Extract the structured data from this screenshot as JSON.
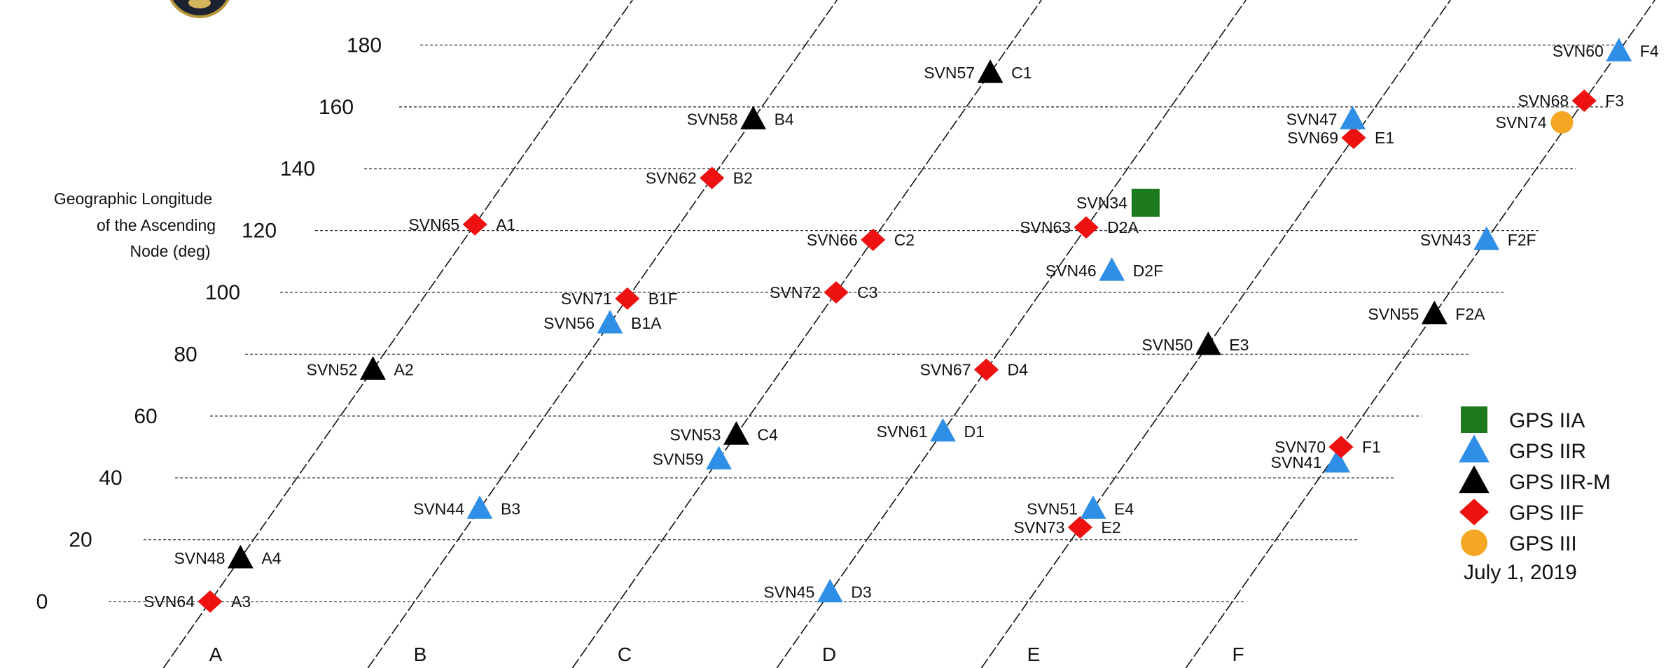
{
  "ylabel_lines": [
    "Geographic Longitude",
    "of the Ascending",
    "Node (deg)"
  ],
  "y_ticks": [
    "0",
    "20",
    "40",
    "60",
    "80",
    "100",
    "120",
    "140",
    "160",
    "180"
  ],
  "planes": [
    "A",
    "B",
    "C",
    "D",
    "E",
    "F"
  ],
  "legend": {
    "items": [
      {
        "type": "IIA",
        "label": "GPS IIA",
        "shape": "square",
        "color": "#1e7a1e"
      },
      {
        "type": "IIR",
        "label": "GPS IIR",
        "shape": "triangle",
        "color": "#2f8fe6"
      },
      {
        "type": "IIRM",
        "label": "GPS IIR-M",
        "shape": "triangle",
        "color": "#000000"
      },
      {
        "type": "IIF",
        "label": "GPS IIF",
        "shape": "diamond",
        "color": "#ee1111"
      },
      {
        "type": "III",
        "label": "GPS III",
        "shape": "circle",
        "color": "#f5a623"
      }
    ],
    "date": "July 1, 2019"
  },
  "satellites": [
    {
      "svn": "SVN64",
      "slot": "A3",
      "plane": "A",
      "lon": 0,
      "type": "IIF"
    },
    {
      "svn": "SVN48",
      "slot": "A4",
      "plane": "A",
      "lon": 14,
      "type": "IIRM"
    },
    {
      "svn": "SVN52",
      "slot": "A2",
      "plane": "A",
      "lon": 75,
      "type": "IIRM"
    },
    {
      "svn": "SVN65",
      "slot": "A1",
      "plane": "A",
      "lon": 122,
      "type": "IIF"
    },
    {
      "svn": "SVN44",
      "slot": "B3",
      "plane": "B",
      "lon": 30,
      "type": "IIR"
    },
    {
      "svn": "SVN56",
      "slot": "B1A",
      "plane": "B",
      "lon": 90,
      "type": "IIR"
    },
    {
      "svn": "SVN71",
      "slot": "B1F",
      "plane": "B",
      "lon": 98,
      "type": "IIF"
    },
    {
      "svn": "SVN62",
      "slot": "B2",
      "plane": "B",
      "lon": 137,
      "type": "IIF"
    },
    {
      "svn": "SVN58",
      "slot": "B4",
      "plane": "B",
      "lon": 156,
      "type": "IIRM"
    },
    {
      "svn": "SVN59",
      "slot": "",
      "plane": "C",
      "lon": 46,
      "type": "IIR"
    },
    {
      "svn": "SVN53",
      "slot": "C4",
      "plane": "C",
      "lon": 54,
      "type": "IIRM"
    },
    {
      "svn": "SVN72",
      "slot": "C3",
      "plane": "C",
      "lon": 100,
      "type": "IIF"
    },
    {
      "svn": "SVN66",
      "slot": "C2",
      "plane": "C",
      "lon": 117,
      "type": "IIF"
    },
    {
      "svn": "SVN57",
      "slot": "C1",
      "plane": "C",
      "lon": 171,
      "type": "IIRM"
    },
    {
      "svn": "SVN45",
      "slot": "D3",
      "plane": "D",
      "lon": 3,
      "type": "IIR"
    },
    {
      "svn": "SVN61",
      "slot": "D1",
      "plane": "D",
      "lon": 55,
      "type": "IIR"
    },
    {
      "svn": "SVN67",
      "slot": "D4",
      "plane": "D",
      "lon": 75,
      "type": "IIF"
    },
    {
      "svn": "SVN46",
      "slot": "D2F",
      "plane": "D",
      "lon": 107,
      "type": "IIR"
    },
    {
      "svn": "SVN63",
      "slot": "D2A",
      "plane": "D",
      "lon": 121,
      "type": "IIF"
    },
    {
      "svn": "SVN34",
      "slot": "",
      "plane": "D",
      "lon": 129,
      "type": "IIA"
    },
    {
      "svn": "SVN73",
      "slot": "E2",
      "plane": "E",
      "lon": 24,
      "type": "IIF"
    },
    {
      "svn": "SVN51",
      "slot": "E4",
      "plane": "E",
      "lon": 30,
      "type": "IIR"
    },
    {
      "svn": "SVN50",
      "slot": "E3",
      "plane": "E",
      "lon": 83,
      "type": "IIRM"
    },
    {
      "svn": "SVN69",
      "slot": "E1",
      "plane": "E",
      "lon": 150,
      "type": "IIF"
    },
    {
      "svn": "SVN47",
      "slot": "",
      "plane": "E",
      "lon": 156,
      "type": "IIR"
    },
    {
      "svn": "SVN41",
      "slot": "",
      "plane": "F",
      "lon": 45,
      "type": "IIR"
    },
    {
      "svn": "SVN70",
      "slot": "F1",
      "plane": "F",
      "lon": 50,
      "type": "IIF"
    },
    {
      "svn": "SVN55",
      "slot": "F2A",
      "plane": "F",
      "lon": 93,
      "type": "IIRM"
    },
    {
      "svn": "SVN43",
      "slot": "F2F",
      "plane": "F",
      "lon": 117,
      "type": "IIR"
    },
    {
      "svn": "SVN74",
      "slot": "",
      "plane": "F",
      "lon": 155,
      "type": "III"
    },
    {
      "svn": "SVN68",
      "slot": "F3",
      "plane": "F",
      "lon": 162,
      "type": "IIF"
    },
    {
      "svn": "SVN60",
      "slot": "F4",
      "plane": "F",
      "lon": 178,
      "type": "IIR"
    }
  ]
}
